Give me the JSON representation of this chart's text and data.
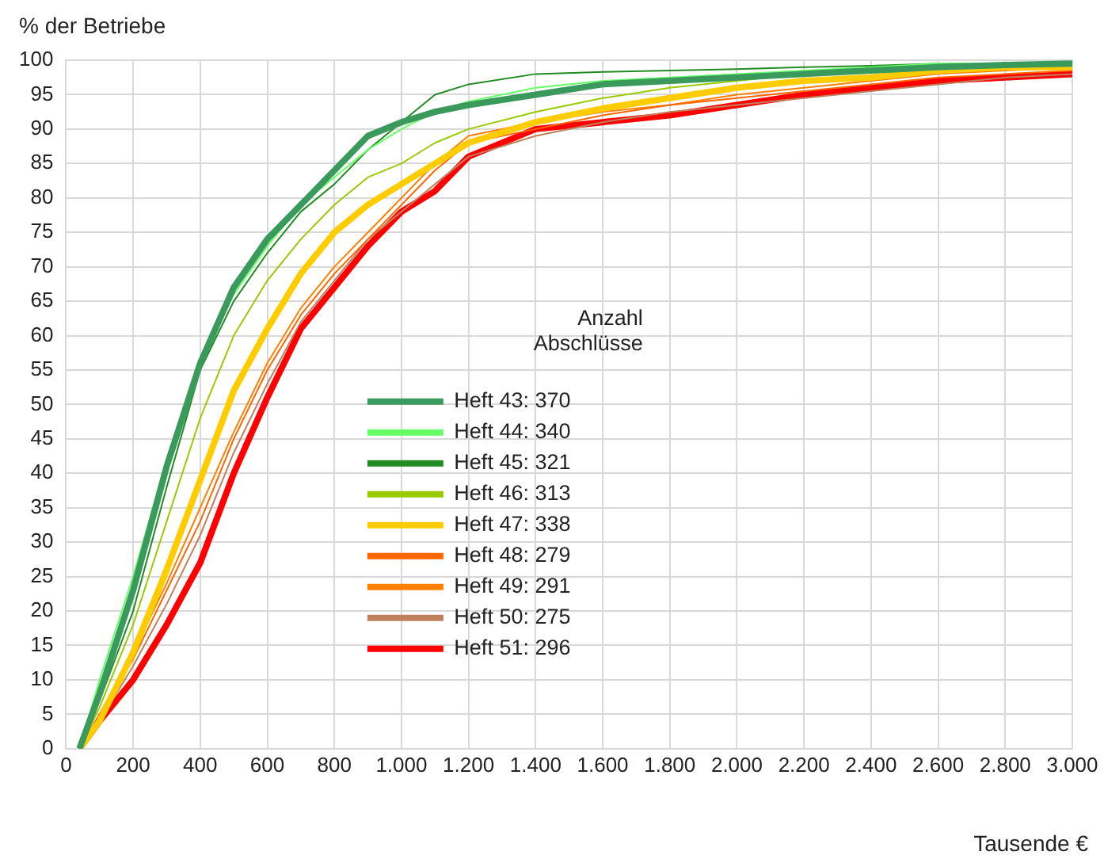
{
  "chart_data": {
    "type": "line",
    "xlabel": "Tausende €",
    "ylabel": "% der Betriebe",
    "legend_title": "Anzahl Abschlüsse",
    "legend": "center",
    "grid": true,
    "marker": "none",
    "line_style": "solid",
    "xlim": [
      0,
      3000
    ],
    "ylim": [
      0,
      100
    ],
    "xticks": [
      0,
      200,
      400,
      600,
      800,
      {
        "value": 1000,
        "label": "1.000"
      },
      {
        "value": 1200,
        "label": "1.200"
      },
      {
        "value": 1400,
        "label": "1.400"
      },
      {
        "value": 1600,
        "label": "1.600"
      },
      {
        "value": 1800,
        "label": "1.800"
      },
      {
        "value": 2000,
        "label": "2.000"
      },
      {
        "value": 2200,
        "label": "2.200"
      },
      {
        "value": 2400,
        "label": "2.400"
      },
      {
        "value": 2600,
        "label": "2.600"
      },
      {
        "value": 2800,
        "label": "2.800"
      },
      {
        "value": 3000,
        "label": "3.000"
      }
    ],
    "yticks": [
      0,
      5,
      10,
      15,
      20,
      25,
      30,
      35,
      40,
      45,
      50,
      55,
      60,
      65,
      70,
      75,
      80,
      85,
      90,
      95,
      100
    ],
    "x": [
      40,
      100,
      200,
      300,
      400,
      500,
      600,
      700,
      800,
      900,
      1000,
      1100,
      1200,
      1400,
      1600,
      1800,
      2000,
      2200,
      2400,
      2600,
      2800,
      3000
    ],
    "series": [
      {
        "name": "Heft 43: 370",
        "color": "#3a9a5c",
        "values": [
          0,
          8,
          23,
          41,
          56,
          67,
          74,
          79,
          84,
          89,
          91,
          92.5,
          93.5,
          95,
          96.5,
          97,
          97.5,
          98,
          98.5,
          99,
          99.3,
          99.5
        ]
      },
      {
        "name": "Heft 44: 340",
        "color": "#66ff66",
        "values": [
          0,
          10,
          25,
          42,
          56,
          66,
          73,
          79,
          83,
          87,
          90,
          92.5,
          94,
          96,
          97,
          97.5,
          98,
          98.5,
          99,
          99.5,
          99.5,
          99.5
        ]
      },
      {
        "name": "Heft 45: 321",
        "color": "#228b22",
        "values": [
          0,
          7,
          20,
          38,
          55,
          65,
          72,
          78,
          82,
          87,
          91,
          95,
          96.5,
          98,
          98.3,
          98.5,
          98.7,
          99,
          99.2,
          99.5,
          99.5,
          99.5
        ]
      },
      {
        "name": "Heft 46: 313",
        "color": "#99cc00",
        "values": [
          0,
          6,
          18,
          33,
          48,
          60,
          68,
          74,
          79,
          83,
          85,
          88,
          90,
          92.5,
          94.5,
          96,
          97,
          98,
          98.5,
          99,
          99.3,
          99.5
        ]
      },
      {
        "name": "Heft 47: 338",
        "color": "#ffcc00",
        "values": [
          0,
          4,
          14,
          26,
          39,
          52,
          61,
          69,
          75,
          79,
          82,
          85,
          88,
          91,
          93,
          94.5,
          96,
          97,
          97.5,
          98.5,
          99,
          99
        ]
      },
      {
        "name": "Heft 48: 279",
        "color": "#ff6600",
        "values": [
          0,
          5,
          13,
          23,
          33,
          45,
          55,
          63,
          69,
          74,
          79,
          84,
          88,
          90,
          92,
          93.5,
          94.5,
          95.5,
          96.5,
          97.5,
          98,
          98.5
        ]
      },
      {
        "name": "Heft 49: 291",
        "color": "#ff8000",
        "values": [
          0,
          5,
          14,
          24,
          35,
          46,
          56,
          64,
          70,
          75,
          80,
          85,
          89,
          91,
          92.5,
          93.5,
          95,
          96,
          97,
          98,
          98.5,
          99
        ]
      },
      {
        "name": "Heft 50: 275",
        "color": "#c0805c",
        "values": [
          0,
          4,
          12,
          21,
          31,
          43,
          53,
          62,
          68,
          74,
          78,
          82,
          86,
          89,
          91,
          92.5,
          93.5,
          94.5,
          95.5,
          96.5,
          97.5,
          98
        ]
      },
      {
        "name": "Heft 51: 296",
        "color": "#ff0000",
        "values": [
          0,
          4,
          10,
          18,
          27,
          40,
          51,
          61,
          67,
          73,
          78,
          81,
          86,
          90,
          91,
          92,
          93.5,
          95,
          96,
          97,
          97.5,
          98
        ]
      }
    ]
  }
}
